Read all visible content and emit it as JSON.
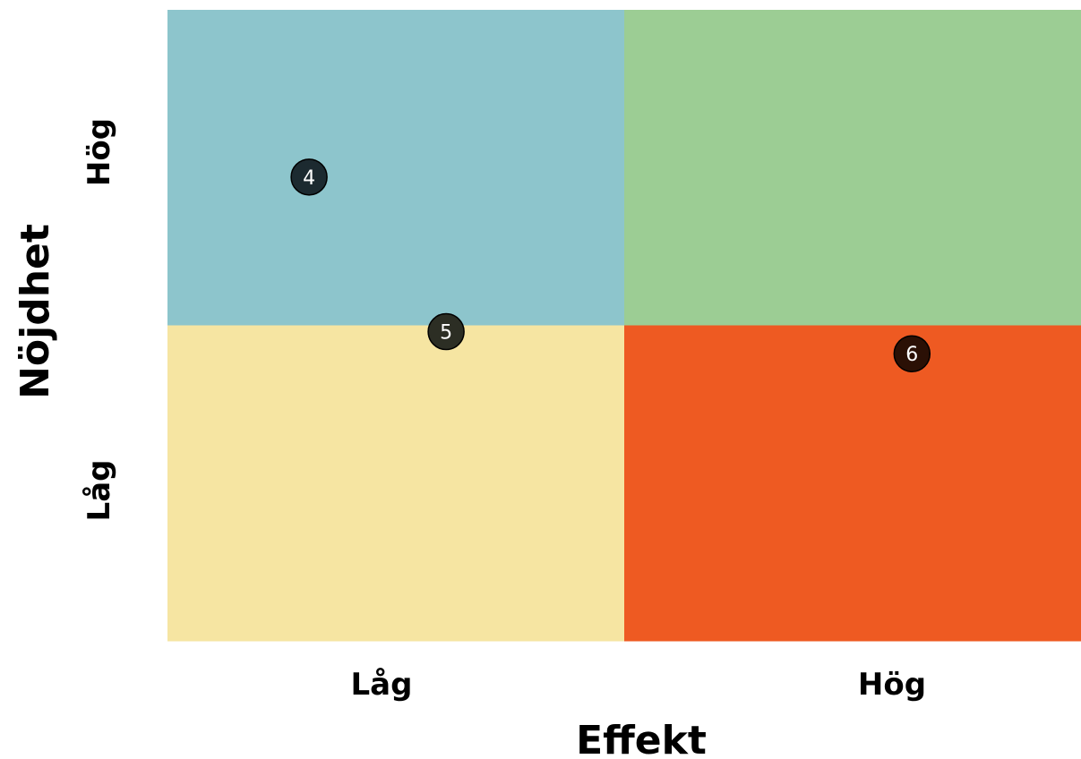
{
  "chart_data": {
    "type": "scatter",
    "title": "",
    "xlabel": "Effekt",
    "ylabel": "Nöjdhet",
    "x_categories": [
      "Låg",
      "Hög"
    ],
    "y_categories": [
      "Låg",
      "Hög"
    ],
    "xlim": [
      0,
      2
    ],
    "ylim": [
      0,
      2
    ],
    "quadrants": [
      {
        "x": "Låg",
        "y": "Hög",
        "color": "#8DC5CC"
      },
      {
        "x": "Hög",
        "y": "Hög",
        "color": "#9CCD94"
      },
      {
        "x": "Låg",
        "y": "Låg",
        "color": "#F6E5A2"
      },
      {
        "x": "Hög",
        "y": "Låg",
        "color": "#EE5A22"
      }
    ],
    "points": [
      {
        "label": "4",
        "x": 0.31,
        "y": 1.47,
        "color": "#1C2A30"
      },
      {
        "label": "5",
        "x": 0.61,
        "y": 0.98,
        "color": "#2C2E24"
      },
      {
        "label": "6",
        "x": 1.63,
        "y": 0.91,
        "color": "#2B1005"
      }
    ]
  }
}
